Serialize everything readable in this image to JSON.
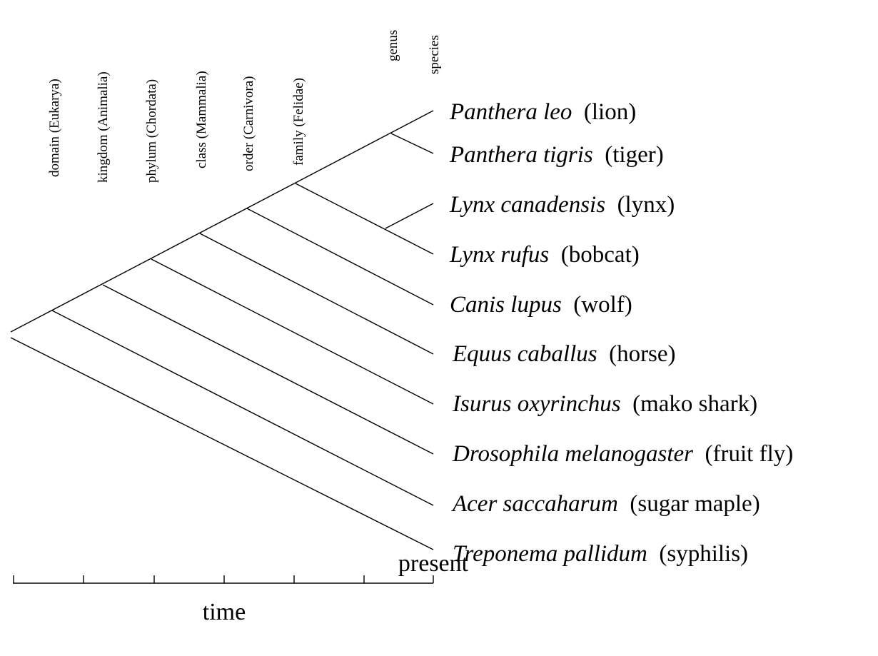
{
  "ranks": [
    "domain (Eukarya)",
    "kingdom (Animalia)",
    "phylum (Chordata)",
    "class (Mammalia)",
    "order (Carnivora)",
    "family (Felidae)",
    "genus",
    "species"
  ],
  "taxa": [
    {
      "scientific": "Panthera leo",
      "common": "(lion)"
    },
    {
      "scientific": "Panthera tigris",
      "common": "(tiger)"
    },
    {
      "scientific": "Lynx canadensis",
      "common": "(lynx)"
    },
    {
      "scientific": "Lynx rufus",
      "common": "(bobcat)"
    },
    {
      "scientific": "Canis lupus",
      "common": "(wolf)"
    },
    {
      "scientific": "Equus caballus",
      "common": "(horse)"
    },
    {
      "scientific": "Isurus oxyrinchus",
      "common": "(mako shark)"
    },
    {
      "scientific": "Drosophila melanogaster",
      "common": "(fruit fly)"
    },
    {
      "scientific": "Acer saccaharum",
      "common": "(sugar maple)"
    },
    {
      "scientific": "Treponema pallidum",
      "common": "(syphilis)"
    }
  ],
  "axis": {
    "end_label": "present",
    "title": "time"
  },
  "colors": {
    "line": "#000000",
    "text": "#000000",
    "background": "#ffffff"
  }
}
